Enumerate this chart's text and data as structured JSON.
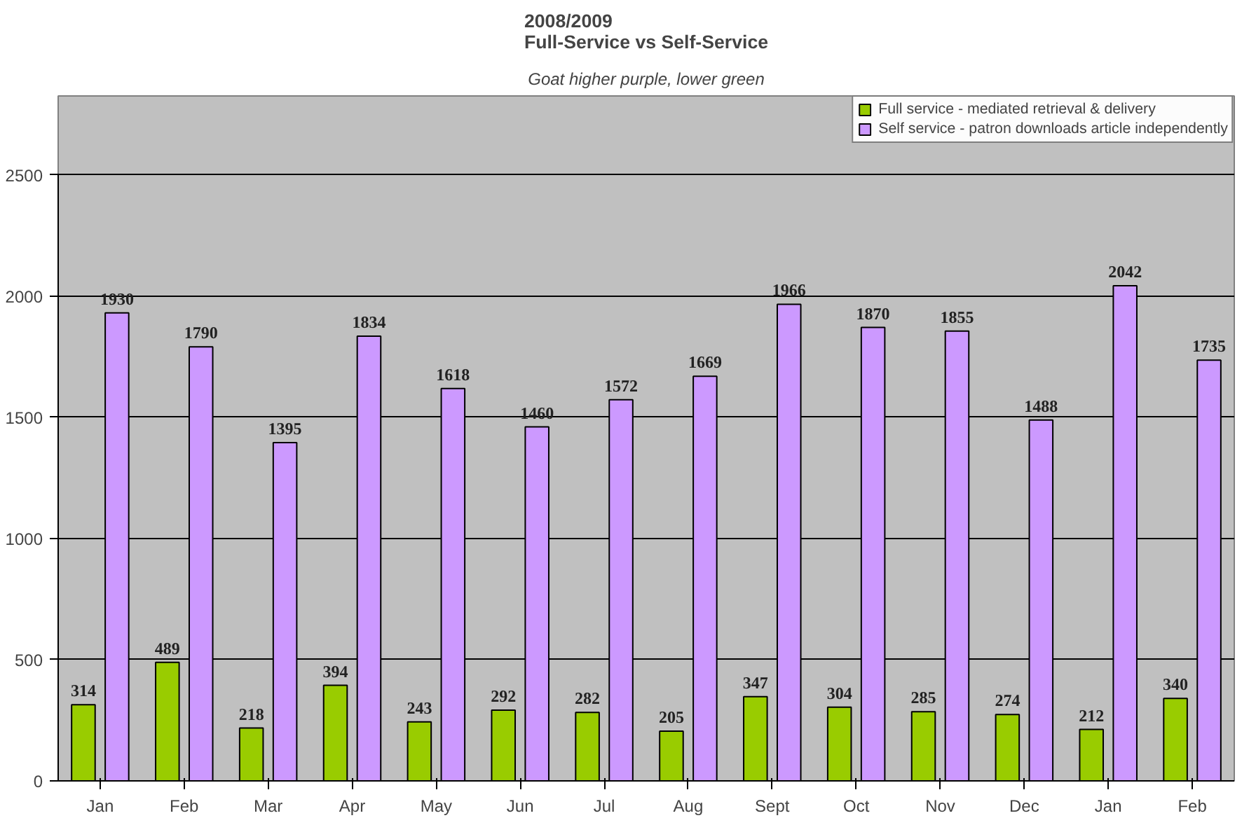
{
  "chart_data": {
    "type": "bar",
    "title": "2008/2009\nFull-Service vs Self-Service",
    "subtitle": "Goat higher purple, lower green",
    "categories": [
      "Jan",
      "Feb",
      "Mar",
      "Apr",
      "May",
      "Jun",
      "Jul",
      "Aug",
      "Sept",
      "Oct",
      "Nov",
      "Dec",
      "Jan",
      "Feb"
    ],
    "series": [
      {
        "name": "Full service - mediated retrieval & delivery",
        "color": "#99cc00",
        "values": [
          314,
          489,
          218,
          394,
          243,
          292,
          282,
          205,
          347,
          304,
          285,
          274,
          212,
          340
        ]
      },
      {
        "name": "Self service - patron downloads article independently",
        "color": "#cc99ff",
        "values": [
          1930,
          1790,
          1395,
          1834,
          1618,
          1460,
          1572,
          1669,
          1966,
          1870,
          1855,
          1488,
          2042,
          1735
        ]
      }
    ],
    "ylim": [
      0,
      2500
    ],
    "yticks": [
      0,
      500,
      1000,
      1500,
      2000,
      2500
    ],
    "grid": "y",
    "legend": "top right",
    "data_labels": true
  }
}
